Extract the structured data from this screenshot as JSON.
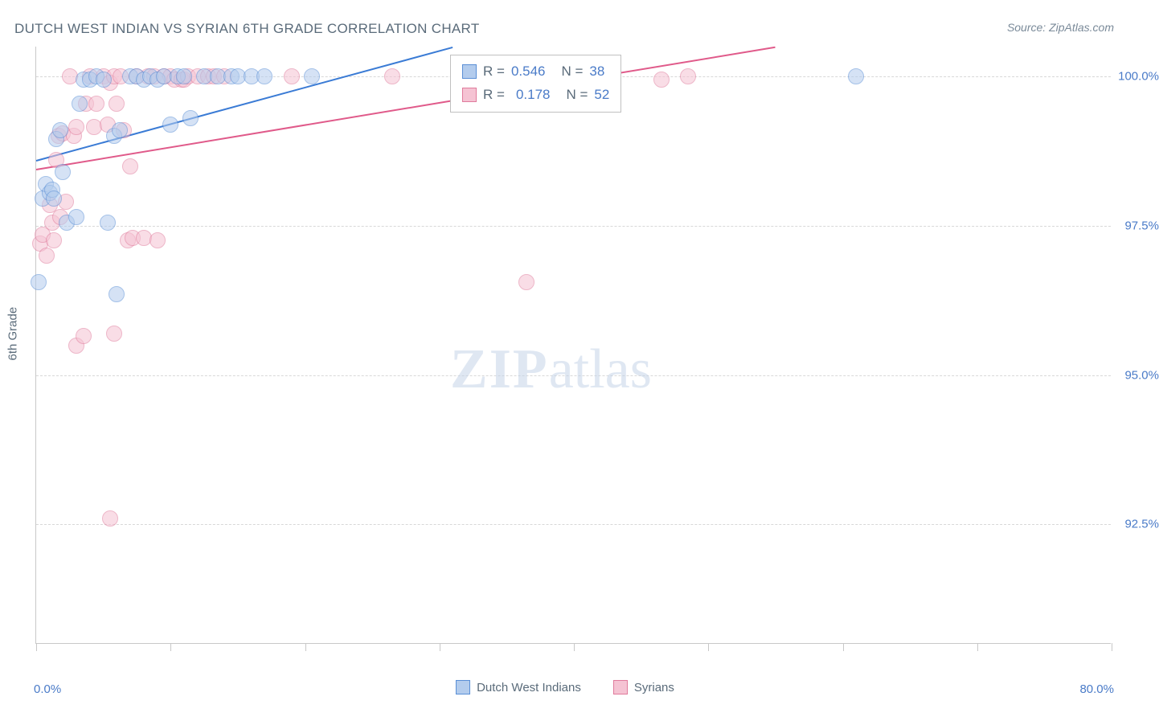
{
  "title": "DUTCH WEST INDIAN VS SYRIAN 6TH GRADE CORRELATION CHART",
  "source": "Source: ZipAtlas.com",
  "ylabel": "6th Grade",
  "watermark_bold": "ZIP",
  "watermark_light": "atlas",
  "chart": {
    "type": "scatter",
    "xlim": [
      0,
      80
    ],
    "ylim": [
      90.5,
      100.5
    ],
    "xtick_positions": [
      0,
      10,
      20,
      30,
      40,
      50,
      60,
      70,
      80
    ],
    "ytick_positions": [
      92.5,
      95.0,
      97.5,
      100.0
    ],
    "ytick_labels": [
      "92.5%",
      "95.0%",
      "97.5%",
      "100.0%"
    ],
    "xlim_labels": [
      "0.0%",
      "80.0%"
    ],
    "background": "#ffffff",
    "grid_color": "#d8d8d8",
    "axis_color": "#c8c8c8",
    "marker_radius": 10,
    "marker_opacity": 0.55,
    "series": [
      {
        "name": "Dutch West Indians",
        "color": "#6699e0",
        "fill": "#b3cced",
        "stroke": "#5a8fd6",
        "line_color": "#3a7bd5",
        "R": "0.546",
        "N": "38",
        "trend": {
          "x1": 0,
          "y1": 98.6,
          "x2": 31,
          "y2": 100.5
        },
        "points": [
          {
            "x": 0.2,
            "y": 96.55
          },
          {
            "x": 0.5,
            "y": 97.95
          },
          {
            "x": 0.7,
            "y": 98.2
          },
          {
            "x": 1.0,
            "y": 98.05
          },
          {
            "x": 1.2,
            "y": 98.1
          },
          {
            "x": 1.3,
            "y": 97.95
          },
          {
            "x": 1.5,
            "y": 98.95
          },
          {
            "x": 1.8,
            "y": 99.1
          },
          {
            "x": 2.0,
            "y": 98.4
          },
          {
            "x": 2.3,
            "y": 97.55
          },
          {
            "x": 3.0,
            "y": 97.65
          },
          {
            "x": 3.2,
            "y": 99.55
          },
          {
            "x": 3.5,
            "y": 99.95
          },
          {
            "x": 4.0,
            "y": 99.95
          },
          {
            "x": 4.5,
            "y": 100.0
          },
          {
            "x": 5.0,
            "y": 99.95
          },
          {
            "x": 5.3,
            "y": 97.55
          },
          {
            "x": 5.8,
            "y": 99.0
          },
          {
            "x": 6.0,
            "y": 96.35
          },
          {
            "x": 6.2,
            "y": 99.1
          },
          {
            "x": 7.0,
            "y": 100.0
          },
          {
            "x": 7.5,
            "y": 100.0
          },
          {
            "x": 8.0,
            "y": 99.95
          },
          {
            "x": 8.5,
            "y": 100.0
          },
          {
            "x": 9.0,
            "y": 99.95
          },
          {
            "x": 9.5,
            "y": 100.0
          },
          {
            "x": 10.0,
            "y": 99.2
          },
          {
            "x": 10.5,
            "y": 100.0
          },
          {
            "x": 11.0,
            "y": 100.0
          },
          {
            "x": 11.5,
            "y": 99.3
          },
          {
            "x": 12.5,
            "y": 100.0
          },
          {
            "x": 13.5,
            "y": 100.0
          },
          {
            "x": 14.5,
            "y": 100.0
          },
          {
            "x": 15.0,
            "y": 100.0
          },
          {
            "x": 16.0,
            "y": 100.0
          },
          {
            "x": 17.0,
            "y": 100.0
          },
          {
            "x": 20.5,
            "y": 100.0
          },
          {
            "x": 61.0,
            "y": 100.0
          }
        ]
      },
      {
        "name": "Syrians",
        "color": "#e88ba8",
        "fill": "#f5c3d3",
        "stroke": "#e07b9c",
        "line_color": "#e05a8a",
        "R": "0.178",
        "N": "52",
        "trend": {
          "x1": 0,
          "y1": 98.45,
          "x2": 55,
          "y2": 100.5
        },
        "points": [
          {
            "x": 0.3,
            "y": 97.2
          },
          {
            "x": 0.5,
            "y": 97.35
          },
          {
            "x": 0.8,
            "y": 97.0
          },
          {
            "x": 1.0,
            "y": 97.85
          },
          {
            "x": 1.2,
            "y": 97.55
          },
          {
            "x": 1.3,
            "y": 97.25
          },
          {
            "x": 1.5,
            "y": 98.6
          },
          {
            "x": 1.7,
            "y": 99.0
          },
          {
            "x": 1.8,
            "y": 97.65
          },
          {
            "x": 2.0,
            "y": 99.05
          },
          {
            "x": 2.2,
            "y": 97.9
          },
          {
            "x": 2.5,
            "y": 100.0
          },
          {
            "x": 2.8,
            "y": 99.0
          },
          {
            "x": 3.0,
            "y": 99.15
          },
          {
            "x": 3.0,
            "y": 95.5
          },
          {
            "x": 3.5,
            "y": 95.65
          },
          {
            "x": 3.7,
            "y": 99.55
          },
          {
            "x": 4.0,
            "y": 100.0
          },
          {
            "x": 4.3,
            "y": 99.15
          },
          {
            "x": 4.5,
            "y": 99.55
          },
          {
            "x": 5.0,
            "y": 100.0
          },
          {
            "x": 5.3,
            "y": 99.2
          },
          {
            "x": 5.5,
            "y": 99.9
          },
          {
            "x": 5.5,
            "y": 92.6
          },
          {
            "x": 5.8,
            "y": 100.0
          },
          {
            "x": 5.8,
            "y": 95.7
          },
          {
            "x": 6.0,
            "y": 99.55
          },
          {
            "x": 6.3,
            "y": 100.0
          },
          {
            "x": 6.5,
            "y": 99.1
          },
          {
            "x": 6.8,
            "y": 97.25
          },
          {
            "x": 7.0,
            "y": 98.5
          },
          {
            "x": 7.2,
            "y": 97.3
          },
          {
            "x": 7.5,
            "y": 100.0
          },
          {
            "x": 8.0,
            "y": 97.3
          },
          {
            "x": 8.3,
            "y": 100.0
          },
          {
            "x": 8.8,
            "y": 100.0
          },
          {
            "x": 9.0,
            "y": 97.25
          },
          {
            "x": 9.5,
            "y": 100.0
          },
          {
            "x": 10.0,
            "y": 100.0
          },
          {
            "x": 10.3,
            "y": 99.95
          },
          {
            "x": 10.8,
            "y": 99.95
          },
          {
            "x": 11.0,
            "y": 99.95
          },
          {
            "x": 11.3,
            "y": 100.0
          },
          {
            "x": 12.0,
            "y": 100.0
          },
          {
            "x": 12.8,
            "y": 100.0
          },
          {
            "x": 13.2,
            "y": 100.0
          },
          {
            "x": 14.0,
            "y": 100.0
          },
          {
            "x": 19.0,
            "y": 100.0
          },
          {
            "x": 26.5,
            "y": 100.0
          },
          {
            "x": 36.5,
            "y": 96.55
          },
          {
            "x": 46.5,
            "y": 99.95
          },
          {
            "x": 48.5,
            "y": 100.0
          }
        ]
      }
    ]
  },
  "stat_box": {
    "R_label": "R =",
    "N_label": "N ="
  }
}
